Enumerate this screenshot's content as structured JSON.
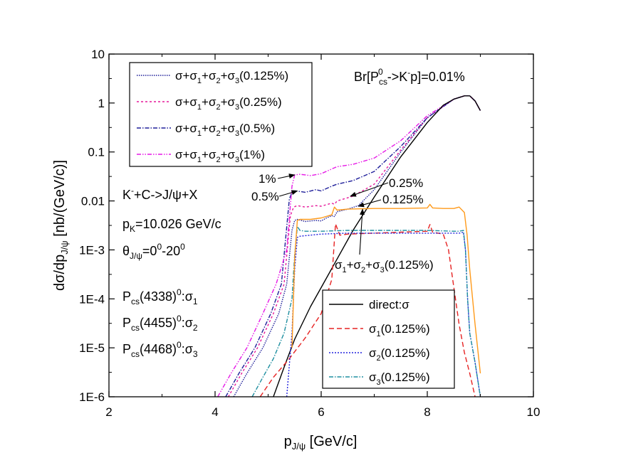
{
  "chart_data": {
    "type": "line",
    "xlabel": "p",
    "xlabel_sub": "J/ψ",
    "xlabel_unit": " [GeV/c]",
    "ylabel": "dσ/dp",
    "ylabel_sub": "J/ψ",
    "ylabel_unit": " [nb/(GeV/c)]",
    "xlim": [
      2,
      10
    ],
    "ylim": [
      1e-06,
      10
    ],
    "yscale": "log",
    "xticks": [
      {
        "v": 2,
        "label": "2"
      },
      {
        "v": 4,
        "label": "4"
      },
      {
        "v": 6,
        "label": "6"
      },
      {
        "v": 8,
        "label": "8"
      },
      {
        "v": 10,
        "label": "10"
      }
    ],
    "yticks": [
      {
        "v": 10,
        "label": "10"
      },
      {
        "v": 1,
        "label": "1"
      },
      {
        "v": 0.1,
        "label": "0.1"
      },
      {
        "v": 0.01,
        "label": "0.01"
      },
      {
        "v": 0.001,
        "label": "1E-3"
      },
      {
        "v": 0.0001,
        "label": "1E-4"
      },
      {
        "v": 1e-05,
        "label": "1E-5"
      },
      {
        "v": 1e-06,
        "label": "1E-6"
      }
    ],
    "grid": false,
    "series": [
      {
        "id": "tot0125",
        "color": "#1f1f9a",
        "dash": "1.5,1.5",
        "x": [
          4.35,
          4.6,
          4.9,
          5.2,
          5.35,
          5.45,
          5.5,
          5.55,
          5.7,
          5.9,
          6.0,
          6.1,
          6.2,
          6.25,
          6.3,
          6.5,
          6.7,
          7.0,
          7.5,
          8.0,
          8.5,
          8.7,
          8.8,
          8.9,
          9.0
        ],
        "y": [
          1e-06,
          3e-06,
          1e-05,
          5e-05,
          0.0002,
          0.0025,
          0.004,
          0.0042,
          0.0038,
          0.004,
          0.0039,
          0.0045,
          0.005,
          0.0048,
          0.006,
          0.0068,
          0.008,
          0.017,
          0.1,
          0.5,
          1.2,
          1.4,
          1.4,
          1.1,
          0.7
        ]
      },
      {
        "id": "tot025",
        "color": "#e6199a",
        "dash": "3,3",
        "x": [
          4.25,
          4.5,
          4.8,
          5.1,
          5.3,
          5.42,
          5.48,
          5.55,
          5.7,
          5.9,
          6.0,
          6.2,
          6.25,
          6.3,
          6.6,
          7.0,
          7.5,
          8.0,
          8.5,
          8.7,
          8.8,
          8.9,
          9.0
        ],
        "y": [
          1e-06,
          3e-06,
          1e-05,
          5e-05,
          0.0002,
          0.005,
          0.0075,
          0.008,
          0.0075,
          0.008,
          0.0078,
          0.009,
          0.0085,
          0.01,
          0.0125,
          0.022,
          0.11,
          0.5,
          1.2,
          1.4,
          1.4,
          1.1,
          0.7
        ]
      },
      {
        "id": "tot05",
        "color": "#1f1f9a",
        "dash": "6,2,1.5,2",
        "x": [
          4.2,
          4.45,
          4.75,
          5.05,
          5.25,
          5.4,
          5.46,
          5.52,
          5.7,
          5.9,
          6.0,
          6.2,
          6.3,
          6.6,
          7.0,
          7.5,
          8.0,
          8.5,
          8.7,
          8.8,
          8.9,
          9.0
        ],
        "y": [
          1e-06,
          3e-06,
          1e-05,
          5e-05,
          0.0002,
          0.011,
          0.016,
          0.016,
          0.015,
          0.017,
          0.016,
          0.02,
          0.022,
          0.026,
          0.04,
          0.13,
          0.5,
          1.2,
          1.4,
          1.4,
          1.1,
          0.7
        ]
      },
      {
        "id": "tot1",
        "color": "#e619e6",
        "dash": "6,2,1.5,2,1.5,2",
        "x": [
          4.05,
          4.3,
          4.6,
          4.9,
          5.15,
          5.35,
          5.45,
          5.5,
          5.6,
          5.8,
          6.0,
          6.2,
          6.3,
          6.6,
          7.0,
          7.5,
          8.0,
          8.5,
          8.7,
          8.8,
          8.9,
          9.0
        ],
        "y": [
          1e-06,
          3e-06,
          1e-05,
          5e-05,
          0.0002,
          0.001,
          0.02,
          0.034,
          0.035,
          0.033,
          0.036,
          0.045,
          0.05,
          0.056,
          0.075,
          0.17,
          0.55,
          1.2,
          1.4,
          1.4,
          1.1,
          0.7
        ]
      },
      {
        "id": "direct",
        "color": "#000000",
        "dash": "",
        "x": [
          5.1,
          5.3,
          5.5,
          5.8,
          6.0,
          6.3,
          6.6,
          7.0,
          7.5,
          8.0,
          8.3,
          8.5,
          8.7,
          8.8,
          8.9,
          9.0
        ],
        "y": [
          1e-06,
          4e-06,
          1.5e-05,
          7e-05,
          0.00017,
          0.00065,
          0.0025,
          0.012,
          0.08,
          0.4,
          0.9,
          1.2,
          1.4,
          1.4,
          1.1,
          0.7
        ]
      },
      {
        "id": "sig1",
        "color": "#e62222",
        "dash": "7,4",
        "x": [
          4.85,
          5.1,
          5.4,
          5.7,
          6.0,
          6.2,
          6.27,
          6.35,
          6.5,
          7.0,
          7.5,
          8.0,
          8.05,
          8.1,
          8.3,
          8.4,
          8.5,
          8.6,
          8.7,
          8.8,
          8.9
        ],
        "y": [
          1e-06,
          2.5e-06,
          6e-06,
          1.6e-05,
          5e-05,
          0.00025,
          0.0034,
          0.002,
          0.0021,
          0.0022,
          0.0023,
          0.0024,
          0.0033,
          0.0023,
          0.0021,
          0.001,
          0.00017,
          3e-05,
          8e-06,
          3e-06,
          1e-06
        ]
      },
      {
        "id": "sig2",
        "color": "#2222dd",
        "dash": "2,2",
        "x": [
          5.35,
          5.45,
          5.5,
          5.55,
          5.6,
          5.8,
          6.0,
          6.5,
          7.0,
          7.5,
          8.0,
          8.5,
          8.6,
          8.68,
          8.72,
          8.76,
          8.8,
          8.9,
          9.0
        ],
        "y": [
          1e-06,
          2e-05,
          0.0004,
          0.0018,
          0.0019,
          0.002,
          0.0021,
          0.0022,
          0.0022,
          0.0022,
          0.0022,
          0.0022,
          0.0022,
          0.0023,
          0.001,
          0.0001,
          2e-05,
          5e-06,
          1e-06
        ]
      },
      {
        "id": "sig3",
        "color": "#1f8fa0",
        "dash": "6,2,1.5,2",
        "x": [
          4.7,
          4.9,
          5.1,
          5.3,
          5.45,
          5.5,
          5.55,
          5.6,
          5.7,
          6.0,
          6.5,
          7.0,
          7.5,
          8.0,
          8.5,
          8.6,
          8.68,
          8.72,
          8.76,
          8.8,
          8.9,
          9.0
        ],
        "y": [
          1e-06,
          2.5e-06,
          6e-06,
          2e-05,
          0.0001,
          0.0008,
          0.003,
          0.0025,
          0.0024,
          0.0024,
          0.0025,
          0.0025,
          0.0025,
          0.0025,
          0.0024,
          0.0024,
          0.0025,
          0.001,
          0.0001,
          2e-05,
          5e-06,
          1e-06
        ]
      },
      {
        "id": "sumsig",
        "color": "#ff9a1a",
        "dash": "",
        "x": [
          5.45,
          5.5,
          5.55,
          5.6,
          5.8,
          6.0,
          6.2,
          6.25,
          6.3,
          6.5,
          7.0,
          7.5,
          8.0,
          8.05,
          8.1,
          8.3,
          8.5,
          8.6,
          8.7,
          8.75,
          8.8,
          8.9,
          9.0
        ],
        "y": [
          1e-05,
          0.0007,
          0.004,
          0.0042,
          0.0042,
          0.0045,
          0.0052,
          0.0075,
          0.0065,
          0.0068,
          0.007,
          0.007,
          0.0072,
          0.0085,
          0.0072,
          0.007,
          0.007,
          0.0075,
          0.0058,
          0.002,
          0.0004,
          3e-05,
          3e-06
        ]
      }
    ],
    "legend_top": {
      "position": "top-left",
      "entries": [
        {
          "series": "tot0125",
          "parts": [
            "σ+σ",
            "1",
            "+σ",
            "2",
            "+σ",
            "3",
            "(0.125%)"
          ]
        },
        {
          "series": "tot025",
          "parts": [
            "σ+σ",
            "1",
            "+σ",
            "2",
            "+σ",
            "3",
            "(0.25%)"
          ]
        },
        {
          "series": "tot05",
          "parts": [
            "σ+σ",
            "1",
            "+σ",
            "2",
            "+σ",
            "3",
            "(0.5%)"
          ]
        },
        {
          "series": "tot1",
          "parts": [
            "σ+σ",
            "1",
            "+σ",
            "2",
            "+σ",
            "3",
            "(1%)"
          ]
        }
      ]
    },
    "legend_bottom": {
      "position": "bottom-right",
      "entries": [
        {
          "series": "direct",
          "text": "direct:σ",
          "sub": ""
        },
        {
          "series": "sig1",
          "text": "σ",
          "sub": "1",
          "tail": "(0.125%)"
        },
        {
          "series": "sig2",
          "text": "σ",
          "sub": "2",
          "tail": "(0.125%)"
        },
        {
          "series": "sig3",
          "text": "σ",
          "sub": "3",
          "tail": "(0.125%)"
        }
      ]
    },
    "annotations": {
      "branching": {
        "a": "Br[P",
        "sub": "cs",
        "sup": "0",
        "b": "->K",
        "sup2": "-",
        "c": "p]=0.01%"
      },
      "reaction": {
        "a": "K",
        "sup": "-",
        "b": "+C->J/ψ+X"
      },
      "momentum": {
        "a": "p",
        "sub": "K",
        "b": "=10.026 GeV/c"
      },
      "angle": {
        "a": "θ",
        "sub": "J/ψ",
        "b": "=0",
        "sup": "0",
        "c": "-20",
        "sup2": "0"
      },
      "states": [
        {
          "a": "P",
          "sub": "cs",
          "b": "(4338)",
          "sup": "0",
          "c": ":σ",
          "sub2": "1"
        },
        {
          "a": "P",
          "sub": "cs",
          "b": "(4455)",
          "sup": "0",
          "c": ":σ",
          "sub2": "2"
        },
        {
          "a": "P",
          "sub": "cs",
          "b": "(4468)",
          "sup": "0",
          "c": ":σ",
          "sub2": "3"
        }
      ],
      "arrow_labels": [
        {
          "text": "1%",
          "target": [
            5.5,
            0.034
          ]
        },
        {
          "text": "0.5%",
          "target": [
            5.55,
            0.016
          ]
        },
        {
          "text": "0.25%",
          "target": [
            6.55,
            0.0125
          ]
        },
        {
          "text": "0.125%",
          "target": [
            6.7,
            0.0078
          ]
        }
      ],
      "sum_label": {
        "parts": [
          "σ",
          "1",
          "+σ",
          "2",
          "+σ",
          "3",
          "(0.125%)"
        ],
        "target": [
          6.78,
          0.0068
        ]
      }
    }
  }
}
